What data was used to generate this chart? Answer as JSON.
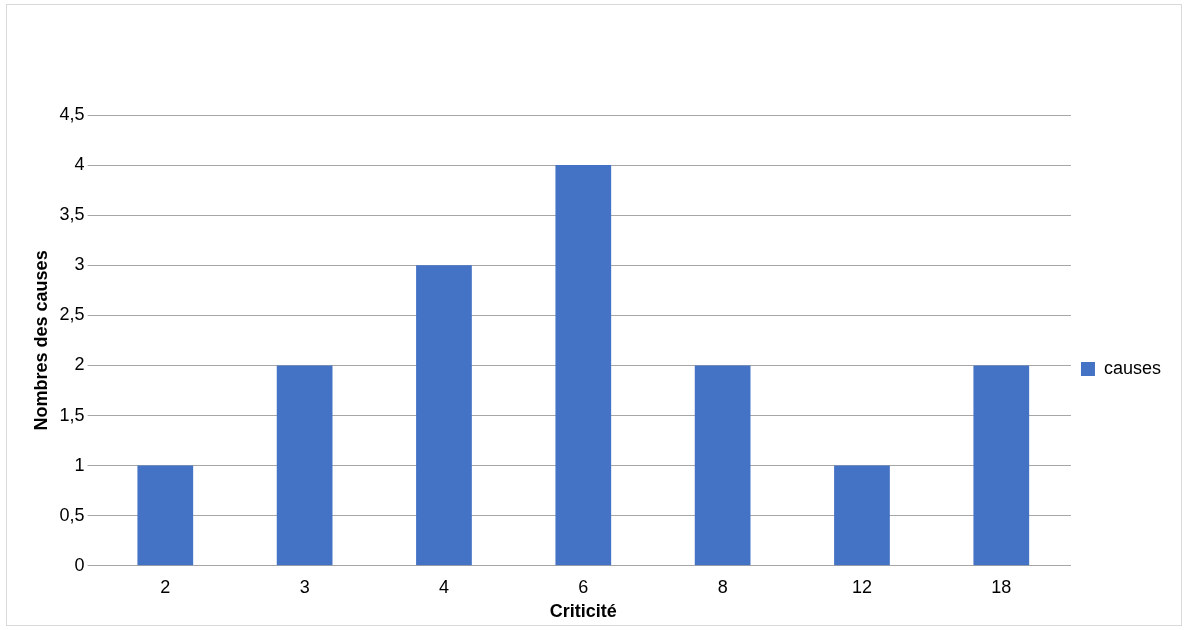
{
  "chart_data": {
    "type": "bar",
    "xlabel": "Criticité",
    "ylabel": "Nombres des causes",
    "categories": [
      "2",
      "3",
      "4",
      "6",
      "8",
      "12",
      "18"
    ],
    "series": [
      {
        "name": "causes",
        "color": "#4472c4",
        "values": [
          1,
          2,
          3,
          4,
          2,
          1,
          2
        ]
      }
    ],
    "ylim": [
      0,
      4.5
    ],
    "yticks": [
      0,
      {
        "value": 0.5,
        "label": "0,5"
      },
      1,
      {
        "value": 1.5,
        "label": "1,5"
      },
      2,
      {
        "value": 2.5,
        "label": "2,5"
      },
      3,
      {
        "value": 3.5,
        "label": "3,5"
      },
      4,
      {
        "value": 4.5,
        "label": "4,5"
      }
    ],
    "grid": "y",
    "legend": "right"
  }
}
